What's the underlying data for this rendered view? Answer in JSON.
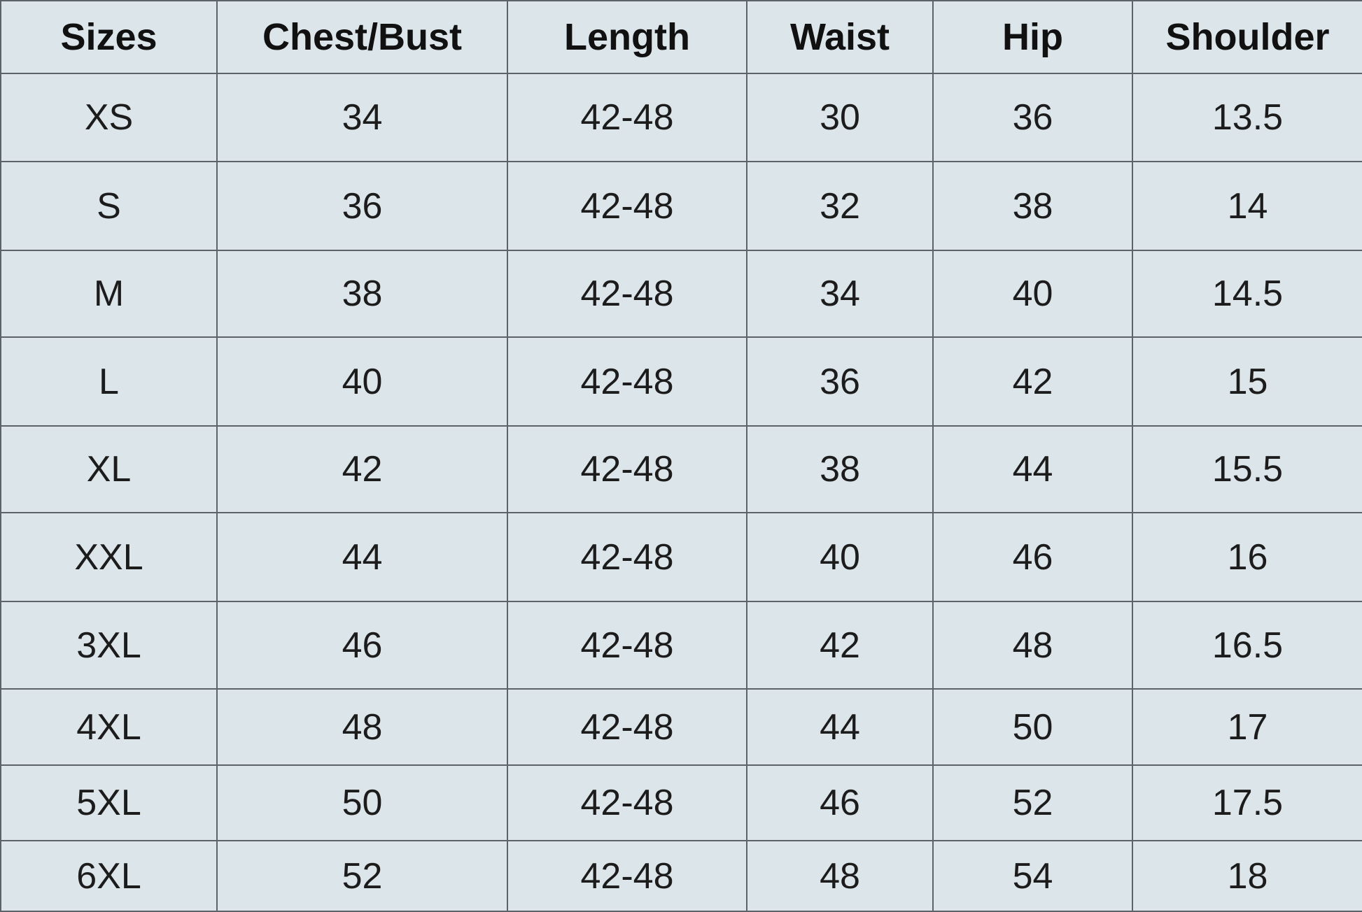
{
  "table": {
    "headers": [
      "Sizes",
      "Chest/Bust",
      "Length",
      "Waist",
      "Hip",
      "Shoulder"
    ],
    "rows": [
      [
        "XS",
        "34",
        "42-48",
        "30",
        "36",
        "13.5"
      ],
      [
        "S",
        "36",
        "42-48",
        "32",
        "38",
        "14"
      ],
      [
        "M",
        "38",
        "42-48",
        "34",
        "40",
        "14.5"
      ],
      [
        "L",
        "40",
        "42-48",
        "36",
        "42",
        "15"
      ],
      [
        "XL",
        "42",
        "42-48",
        "38",
        "44",
        "15.5"
      ],
      [
        "XXL",
        "44",
        "42-48",
        "40",
        "46",
        "16"
      ],
      [
        "3XL",
        "46",
        "42-48",
        "42",
        "48",
        "16.5"
      ],
      [
        "4XL",
        "48",
        "42-48",
        "44",
        "50",
        "17"
      ],
      [
        "5XL",
        "50",
        "42-48",
        "46",
        "52",
        "17.5"
      ],
      [
        "6XL",
        "52",
        "42-48",
        "48",
        "54",
        "18"
      ]
    ]
  }
}
